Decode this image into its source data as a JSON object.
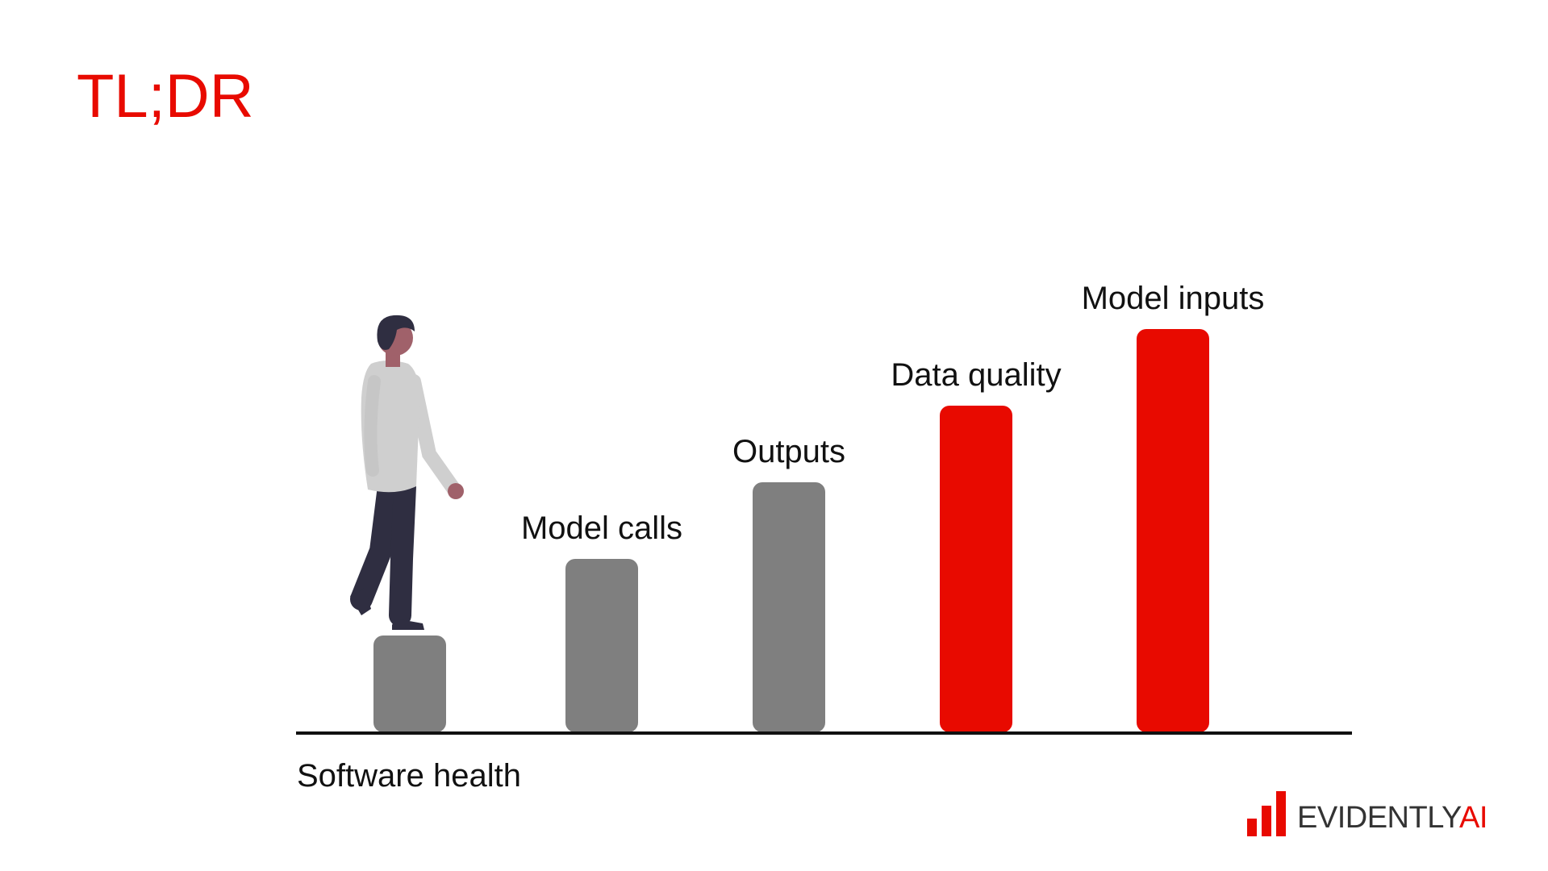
{
  "slide": {
    "title": "TL;DR",
    "title_color": "#e80a00"
  },
  "steps": [
    {
      "label": "",
      "level": 1,
      "color": "#7f7f7f"
    },
    {
      "label": "Model calls",
      "level": 2,
      "color": "#7f7f7f"
    },
    {
      "label": "Outputs",
      "level": 3,
      "color": "#7f7f7f"
    },
    {
      "label": "Data quality",
      "level": 4,
      "color": "#e80a00"
    },
    {
      "label": "Model inputs",
      "level": 5,
      "color": "#e80a00"
    }
  ],
  "axis": {
    "caption": "Software health"
  },
  "figure": {
    "icon": "person-walking-icon"
  },
  "brand": {
    "name": "EVIDENTLY",
    "suffix": "AI",
    "icon": "bar-chart-logo-icon",
    "accent_color": "#e80a00"
  }
}
